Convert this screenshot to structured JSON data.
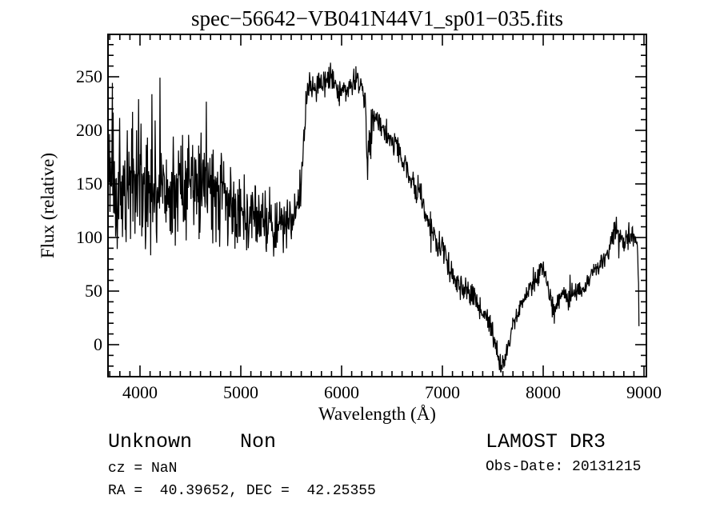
{
  "title": "spec−56642−VB041N44V1_sp01−035.fits",
  "chart_data": {
    "type": "line",
    "title": "spec−56642−VB041N44V1_sp01−035.fits",
    "xlabel": "Wavelength (Å)",
    "ylabel": "Flux (relative)",
    "xlim": [
      3683,
      9024
    ],
    "ylim": [
      -30,
      290
    ],
    "x_major_ticks": [
      4000,
      5000,
      6000,
      7000,
      8000,
      9000
    ],
    "y_major_ticks": [
      0,
      50,
      100,
      150,
      200,
      250
    ],
    "x_minor_step": 100,
    "y_minor_step": 10,
    "grid": false,
    "legend": "none",
    "line_color": "#000000",
    "background_color": "#ffffff",
    "series": [
      {
        "name": "spectrum",
        "x_start": 3690,
        "x_end": 8952,
        "x_step": 4,
        "prng_seed": 20131215,
        "continuum_points": [
          [
            3690,
            138
          ],
          [
            3740,
            135
          ],
          [
            3800,
            134
          ],
          [
            3870,
            145
          ],
          [
            3940,
            150
          ],
          [
            4000,
            146
          ],
          [
            4060,
            140
          ],
          [
            4140,
            141
          ],
          [
            4220,
            143
          ],
          [
            4300,
            146
          ],
          [
            4380,
            147
          ],
          [
            4460,
            146
          ],
          [
            4540,
            149
          ],
          [
            4620,
            150
          ],
          [
            4700,
            143
          ],
          [
            4780,
            137
          ],
          [
            4860,
            131
          ],
          [
            4940,
            127
          ],
          [
            5020,
            124
          ],
          [
            5100,
            121
          ],
          [
            5180,
            119
          ],
          [
            5260,
            116
          ],
          [
            5340,
            113
          ],
          [
            5420,
            110
          ],
          [
            5490,
            114
          ],
          [
            5550,
            122
          ],
          [
            5600,
            150
          ],
          [
            5630,
            205
          ],
          [
            5665,
            242
          ],
          [
            5700,
            246
          ],
          [
            5760,
            243
          ],
          [
            5820,
            244
          ],
          [
            5870,
            252
          ],
          [
            5910,
            248
          ],
          [
            5960,
            238
          ],
          [
            6010,
            233
          ],
          [
            6060,
            236
          ],
          [
            6110,
            243
          ],
          [
            6160,
            246
          ],
          [
            6200,
            243
          ],
          [
            6235,
            230
          ],
          [
            6255,
            152
          ],
          [
            6275,
            190
          ],
          [
            6310,
            213
          ],
          [
            6360,
            206
          ],
          [
            6430,
            198
          ],
          [
            6500,
            191
          ],
          [
            6570,
            180
          ],
          [
            6620,
            169
          ],
          [
            6680,
            153
          ],
          [
            6730,
            146
          ],
          [
            6780,
            139
          ],
          [
            6830,
            127
          ],
          [
            6880,
            113
          ],
          [
            6930,
            101
          ],
          [
            6980,
            92
          ],
          [
            7030,
            82
          ],
          [
            7080,
            68
          ],
          [
            7130,
            61
          ],
          [
            7180,
            55
          ],
          [
            7230,
            51
          ],
          [
            7280,
            48
          ],
          [
            7330,
            43
          ],
          [
            7380,
            35
          ],
          [
            7430,
            29
          ],
          [
            7480,
            16
          ],
          [
            7520,
            3
          ],
          [
            7555,
            -13
          ],
          [
            7585,
            -21
          ],
          [
            7615,
            -14
          ],
          [
            7655,
            0
          ],
          [
            7695,
            18
          ],
          [
            7745,
            29
          ],
          [
            7795,
            39
          ],
          [
            7845,
            47
          ],
          [
            7895,
            54
          ],
          [
            7945,
            63
          ],
          [
            7990,
            73
          ],
          [
            8030,
            62
          ],
          [
            8075,
            40
          ],
          [
            8110,
            28
          ],
          [
            8150,
            40
          ],
          [
            8200,
            47
          ],
          [
            8250,
            44
          ],
          [
            8300,
            50
          ],
          [
            8350,
            47
          ],
          [
            8400,
            52
          ],
          [
            8450,
            60
          ],
          [
            8500,
            67
          ],
          [
            8550,
            74
          ],
          [
            8600,
            81
          ],
          [
            8650,
            88
          ],
          [
            8700,
            98
          ],
          [
            8730,
            113
          ],
          [
            8760,
            101
          ],
          [
            8800,
            97
          ],
          [
            8840,
            104
          ],
          [
            8880,
            104
          ],
          [
            8912,
            98
          ],
          [
            8936,
            90
          ],
          [
            8946,
            55
          ],
          [
            8952,
            8
          ]
        ],
        "noise_sigma_points": [
          [
            3690,
            52
          ],
          [
            3780,
            46
          ],
          [
            3900,
            44
          ],
          [
            4000,
            42
          ],
          [
            4100,
            38
          ],
          [
            4200,
            36
          ],
          [
            4300,
            35
          ],
          [
            4400,
            34
          ],
          [
            4500,
            33
          ],
          [
            4600,
            32
          ],
          [
            4700,
            30
          ],
          [
            4800,
            28
          ],
          [
            4900,
            26
          ],
          [
            5000,
            23
          ],
          [
            5100,
            21
          ],
          [
            5200,
            20
          ],
          [
            5300,
            19
          ],
          [
            5400,
            18
          ],
          [
            5500,
            15
          ],
          [
            5580,
            13
          ],
          [
            5650,
            10
          ],
          [
            5750,
            9
          ],
          [
            5850,
            9
          ],
          [
            5950,
            8
          ],
          [
            6050,
            8
          ],
          [
            6150,
            8
          ],
          [
            6240,
            10
          ],
          [
            6270,
            12
          ],
          [
            6350,
            9
          ],
          [
            6450,
            8
          ],
          [
            6550,
            8
          ],
          [
            6650,
            9
          ],
          [
            6750,
            9
          ],
          [
            6850,
            10
          ],
          [
            6950,
            10
          ],
          [
            7050,
            9
          ],
          [
            7150,
            8
          ],
          [
            7250,
            8
          ],
          [
            7350,
            8
          ],
          [
            7450,
            7
          ],
          [
            7550,
            6
          ],
          [
            7650,
            6
          ],
          [
            7750,
            6
          ],
          [
            7850,
            6
          ],
          [
            7950,
            7
          ],
          [
            8050,
            7
          ],
          [
            8150,
            7
          ],
          [
            8250,
            6
          ],
          [
            8350,
            6
          ],
          [
            8450,
            6
          ],
          [
            8550,
            6
          ],
          [
            8650,
            7
          ],
          [
            8730,
            8
          ],
          [
            8850,
            8
          ],
          [
            8952,
            5
          ]
        ]
      }
    ]
  },
  "annotations": {
    "class_label": "Unknown",
    "subclass_label": "Non",
    "cz_line": "cz = NaN",
    "radec_line": "RA =  40.39652, DEC =  42.25355",
    "survey_label": "LAMOST DR3",
    "obsdate_line": "Obs-Date: 20131215"
  },
  "colors": {
    "foreground": "#000000",
    "background": "#ffffff"
  }
}
